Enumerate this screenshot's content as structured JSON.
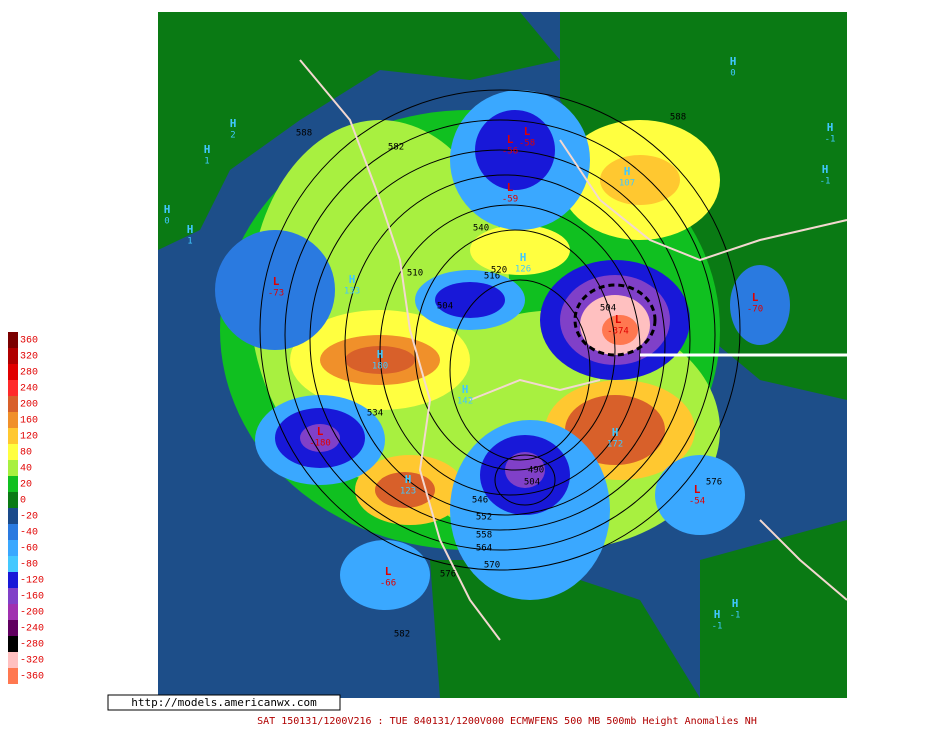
{
  "legend": {
    "items": [
      {
        "label": "360",
        "color": "#7a0000"
      },
      {
        "label": "320",
        "color": "#b00000"
      },
      {
        "label": "280",
        "color": "#e00000"
      },
      {
        "label": "240",
        "color": "#ff2a2a"
      },
      {
        "label": "200",
        "color": "#d8602a"
      },
      {
        "label": "160",
        "color": "#f0902a"
      },
      {
        "label": "120",
        "color": "#ffc830"
      },
      {
        "label": "80",
        "color": "#ffff40"
      },
      {
        "label": "40",
        "color": "#a8f040"
      },
      {
        "label": "20",
        "color": "#10c020"
      },
      {
        "label": "0",
        "color": "#0a7a14"
      },
      {
        "label": "-20",
        "color": "#1a4a8a"
      },
      {
        "label": "-40",
        "color": "#2a7ae0"
      },
      {
        "label": "-60",
        "color": "#3aa8ff"
      },
      {
        "label": "-80",
        "color": "#44c8ff"
      },
      {
        "label": "-120",
        "color": "#1818d8"
      },
      {
        "label": "-160",
        "color": "#8040c8"
      },
      {
        "label": "-200",
        "color": "#a030b0"
      },
      {
        "label": "-240",
        "color": "#600060"
      },
      {
        "label": "-280",
        "color": "#000000"
      },
      {
        "label": "-320",
        "color": "#ffc0c0"
      },
      {
        "label": "-360",
        "color": "#ff7850"
      }
    ]
  },
  "contours": [
    "588",
    "582",
    "588",
    "540",
    "510",
    "516",
    "520",
    "504",
    "504",
    "534",
    "490",
    "504",
    "576",
    "576",
    "582",
    "546",
    "552",
    "558",
    "564",
    "570"
  ],
  "centers": [
    {
      "letter": "H",
      "value": "0"
    },
    {
      "letter": "H",
      "value": "2"
    },
    {
      "letter": "H",
      "value": "1"
    },
    {
      "letter": "H",
      "value": "0"
    },
    {
      "letter": "H",
      "value": "1"
    },
    {
      "letter": "L",
      "value": "-73"
    },
    {
      "letter": "H",
      "value": "133"
    },
    {
      "letter": "H",
      "value": "180"
    },
    {
      "letter": "L",
      "value": "-180"
    },
    {
      "letter": "H",
      "value": "123"
    },
    {
      "letter": "L",
      "value": "-66"
    },
    {
      "letter": "L",
      "value": "-56"
    },
    {
      "letter": "L",
      "value": "-58"
    },
    {
      "letter": "L",
      "value": "-59"
    },
    {
      "letter": "L",
      "value": "-374"
    },
    {
      "letter": "H",
      "value": "107"
    },
    {
      "letter": "H",
      "value": "126"
    },
    {
      "letter": "H",
      "value": "172"
    },
    {
      "letter": "L",
      "value": "-54"
    },
    {
      "letter": "L",
      "value": "-70"
    },
    {
      "letter": "H",
      "value": "-1"
    },
    {
      "letter": "H",
      "value": "-1"
    },
    {
      "letter": "H",
      "value": "-1"
    },
    {
      "letter": "H",
      "value": "-1"
    },
    {
      "letter": "H",
      "value": "142"
    }
  ],
  "url": "http://models.americanwx.com",
  "footer": "SAT 150131/1200V216 : TUE 840131/1200V000  ECMWFENS  500 MB 500mb Height Anomalies NH"
}
